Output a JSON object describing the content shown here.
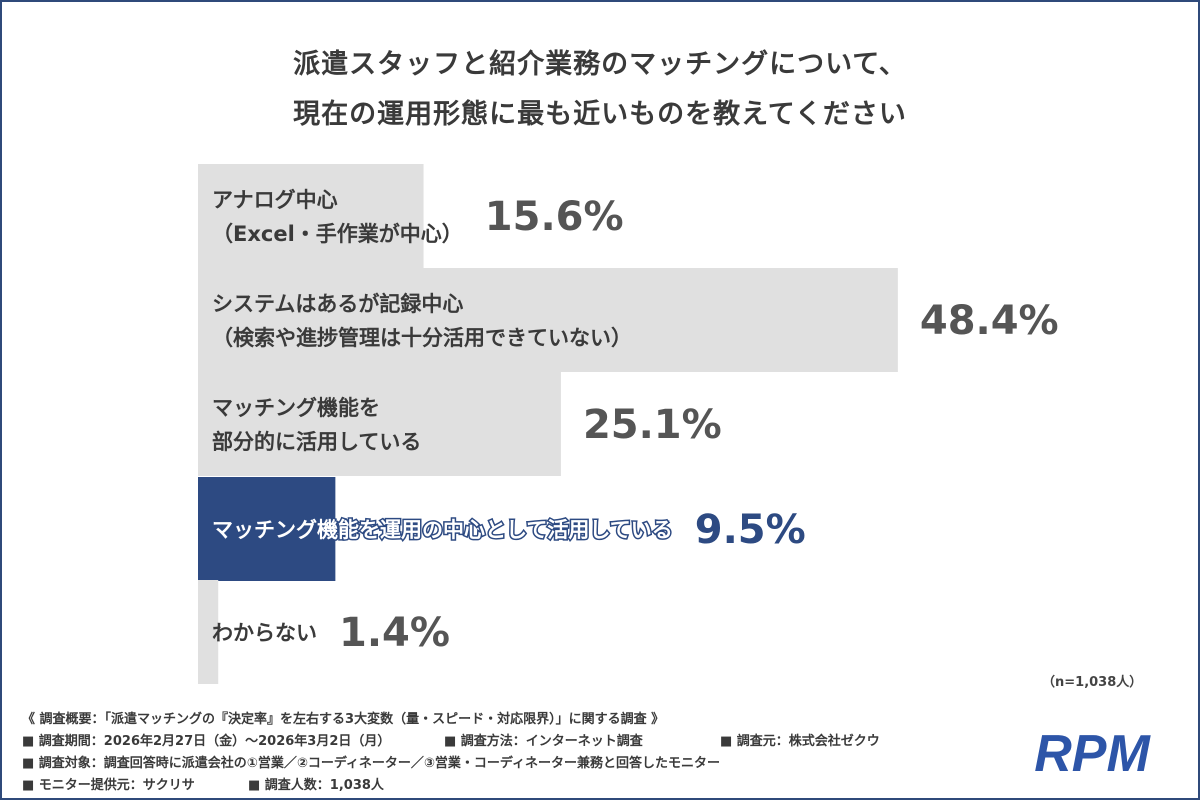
{
  "title_line1": "派遣スタッフと紹介業務のマッチングについて、",
  "title_line2": "現在の運用形態に最も近いものを教えてください",
  "chart_data": {
    "type": "bar",
    "orientation": "horizontal",
    "categories": [
      [
        "アナログ中心",
        "（Excel・手作業が中心）"
      ],
      [
        "システムはあるが記録中心",
        "（検索や進捗管理は十分活用できていない）"
      ],
      [
        "マッチング機能を",
        "部分的に活用している"
      ],
      [
        "マッチング機能を運用の中心として活用している"
      ],
      [
        "わからない"
      ]
    ],
    "values": [
      15.6,
      48.4,
      25.1,
      9.5,
      1.4
    ],
    "value_labels": [
      "15.6%",
      "48.4%",
      "25.1%",
      "9.5%",
      "1.4%"
    ],
    "highlight_index": 3,
    "xlim": [
      0,
      50
    ],
    "colors": {
      "bar": "#e0e0e0",
      "highlight": "#2d4a82",
      "text": "#3a3a3a",
      "value_text": "#555555",
      "highlight_value": "#2d4a82"
    }
  },
  "sample_size": "（n=1,038人）",
  "notes": [
    "《 調査概要：「派遣マッチングの『決定率』を左右する3大変数（量・スピード・対応限界）」に関する調査 》",
    "■ 調査期間：2026年2月27日（金）〜2026年3月2日（月）",
    "■ 調査方法：インターネット調査",
    "■ 調査元：株式会社ゼクウ",
    "■ 調査対象：調査回答時に派遣会社の①営業／②コーディネーター／③営業・コーディネーター兼務と回答したモニター",
    "■ モニター提供元：サクリサ",
    "■ 調査人数：1,038人"
  ],
  "logo_text": "RPM",
  "logo_color": "#2d55a8"
}
